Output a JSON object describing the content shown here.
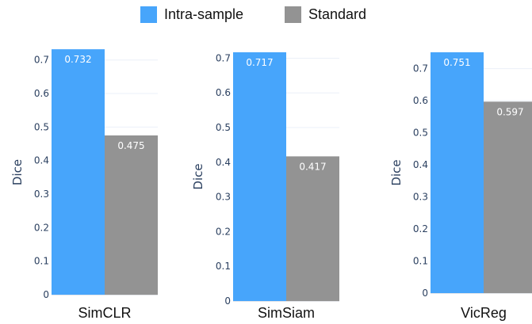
{
  "legend": {
    "items": [
      {
        "label": "Intra-sample",
        "color": "#47a5fb"
      },
      {
        "label": "Standard",
        "color": "#939393"
      }
    ]
  },
  "chart_data": [
    {
      "type": "bar",
      "categories": [
        "SimCLR"
      ],
      "series": [
        {
          "name": "Intra-sample",
          "values": [
            0.732
          ]
        },
        {
          "name": "Standard",
          "values": [
            0.475
          ]
        }
      ],
      "data_labels": [
        "0.732",
        "0.475"
      ],
      "ylabel": "Dice",
      "ylim": [
        0,
        0.73
      ],
      "yticks": [
        "0",
        "0.1",
        "0.2",
        "0.3",
        "0.4",
        "0.5",
        "0.6",
        "0.7"
      ],
      "grid": true
    },
    {
      "type": "bar",
      "categories": [
        "SimSiam"
      ],
      "series": [
        {
          "name": "Intra-sample",
          "values": [
            0.717
          ]
        },
        {
          "name": "Standard",
          "values": [
            0.417
          ]
        }
      ],
      "data_labels": [
        "0.717",
        "0.417"
      ],
      "ylabel": "Dice",
      "ylim": [
        0,
        0.717
      ],
      "yticks": [
        "0",
        "0.1",
        "0.2",
        "0.3",
        "0.4",
        "0.5",
        "0.6",
        "0.7"
      ],
      "grid": true
    },
    {
      "type": "bar",
      "categories": [
        "VicReg"
      ],
      "series": [
        {
          "name": "Intra-sample",
          "values": [
            0.751
          ]
        },
        {
          "name": "Standard",
          "values": [
            0.597
          ]
        }
      ],
      "data_labels": [
        "0.751",
        "0.597"
      ],
      "ylabel": "Dice",
      "ylim": [
        0,
        0.751
      ],
      "yticks": [
        "0",
        "0.1",
        "0.2",
        "0.3",
        "0.4",
        "0.5",
        "0.6",
        "0.7"
      ],
      "grid": true
    }
  ]
}
